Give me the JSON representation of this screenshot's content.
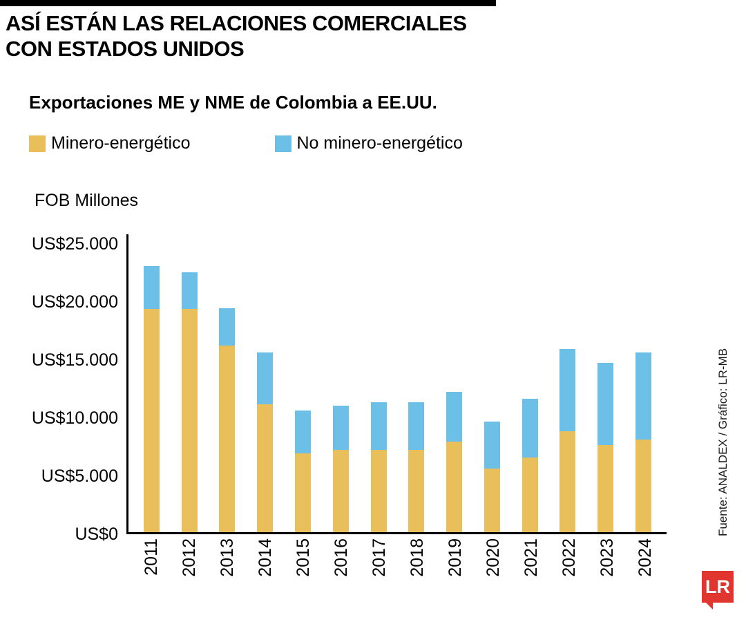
{
  "header": {
    "title_line1": "ASÍ ESTÁN LAS RELACIONES COMERCIALES",
    "title_line2": "CON ESTADOS UNIDOS",
    "subtitle": "Exportaciones ME y NME de Colombia a EE.UU."
  },
  "legend": [
    {
      "label": "Minero-energético",
      "color": "#e9bf5c"
    },
    {
      "label": "No minero-energético",
      "color": "#6cc0e8"
    }
  ],
  "chart_data": {
    "type": "bar",
    "stacked": true,
    "title": "Exportaciones ME y NME de Colombia a EE.UU.",
    "ylabel": "FOB Millones",
    "xlabel": "",
    "categories": [
      "2011",
      "2012",
      "2013",
      "2014",
      "2015",
      "2016",
      "2017",
      "2018",
      "2019",
      "2020",
      "2021",
      "2022",
      "2023",
      "2024"
    ],
    "series": [
      {
        "name": "Minero-energético",
        "color": "#e9bf5c",
        "values": [
          19200,
          19200,
          16100,
          11000,
          6800,
          7100,
          7100,
          7100,
          7800,
          5500,
          6400,
          8700,
          7500,
          8000
        ]
      },
      {
        "name": "No minero-energético",
        "color": "#6cc0e8",
        "values": [
          3700,
          3200,
          3200,
          4500,
          3700,
          3800,
          4100,
          4100,
          4300,
          4000,
          5100,
          7100,
          7100,
          7500
        ]
      }
    ],
    "ylim": [
      0,
      25000
    ],
    "ytick_step": 5000,
    "ytick_labels": [
      "US$0",
      "US$5.000",
      "US$10.000",
      "US$15.000",
      "US$20.000",
      "US$25.000"
    ],
    "grid": false,
    "legend_position": "top"
  },
  "footer": {
    "source": "Fuente:  ANALDEX / Gráfico: LR-MB",
    "logo_text": "LR"
  }
}
